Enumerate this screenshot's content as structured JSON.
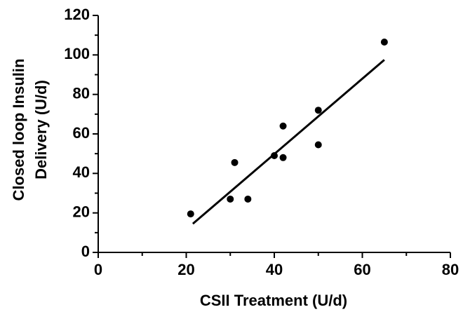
{
  "chart_data": {
    "type": "scatter",
    "x_label": "CSII Treatment  (U/d)",
    "y_label": [
      "Closed loop Insulin",
      "Delivery (U/d)"
    ],
    "x": [
      21,
      30,
      31,
      34,
      40,
      42,
      42,
      50,
      50,
      65
    ],
    "values": [
      19.5,
      27,
      45.5,
      27,
      49,
      64,
      48,
      72,
      54.5,
      106.5
    ],
    "color": "#000000",
    "trend_line": {
      "x": [
        21.5,
        65
      ],
      "values": [
        14.5,
        97.5
      ]
    },
    "xlim": [
      0,
      80
    ],
    "xticks": [
      0,
      20,
      40,
      60,
      80
    ],
    "xminorticks": [
      10,
      30,
      50,
      70
    ],
    "ylim": [
      0,
      120
    ],
    "yticks": [
      0,
      20,
      40,
      60,
      80,
      100,
      120
    ],
    "yminorticks": [
      10,
      30,
      50,
      70,
      90,
      110
    ]
  }
}
